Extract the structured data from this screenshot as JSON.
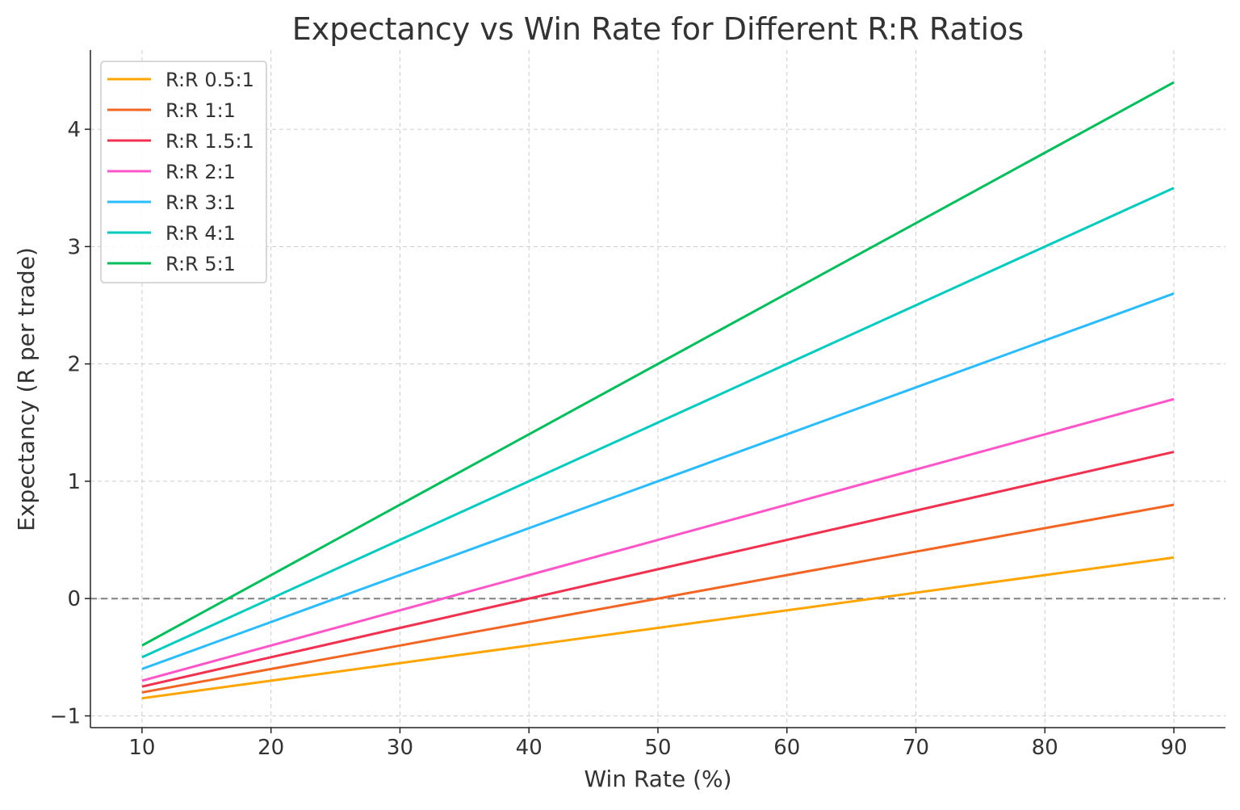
{
  "chart_data": {
    "type": "line",
    "title": "Expectancy vs Win Rate for Different R:R Ratios",
    "xlabel": "Win Rate (%)",
    "ylabel": "Expectancy (R per trade)",
    "xlim": [
      6,
      94
    ],
    "ylim": [
      -1.1,
      4.675
    ],
    "xticks": [
      10,
      20,
      30,
      40,
      50,
      60,
      70,
      80,
      90
    ],
    "yticks": [
      -1,
      0,
      1,
      2,
      3,
      4
    ],
    "ytick_labels": [
      "−1",
      "0",
      "1",
      "2",
      "3",
      "4"
    ],
    "grid": true,
    "reference_line": {
      "y": 0,
      "style": "dashed",
      "color": "#808080"
    },
    "legend_position": "top-left",
    "x": [
      10,
      20,
      30,
      40,
      50,
      60,
      70,
      80,
      90
    ],
    "series": [
      {
        "name": "R:R 0.5:1",
        "color": "#FFA500",
        "values": [
          -0.85,
          -0.7,
          -0.55,
          -0.4,
          -0.25,
          -0.1,
          0.05,
          0.2,
          0.35
        ]
      },
      {
        "name": "R:R 1:1",
        "color": "#F26522",
        "values": [
          -0.8,
          -0.6,
          -0.4,
          -0.2,
          0,
          0.2,
          0.4,
          0.6,
          0.8
        ]
      },
      {
        "name": "R:R 1.5:1",
        "color": "#F2304F",
        "values": [
          -0.75,
          -0.5,
          -0.25,
          0,
          0.25,
          0.5,
          0.75,
          1.0,
          1.25
        ]
      },
      {
        "name": "R:R 2:1",
        "color": "#FF55C8",
        "values": [
          -0.7,
          -0.4,
          -0.1,
          0.2,
          0.5,
          0.8,
          1.1,
          1.4,
          1.7
        ]
      },
      {
        "name": "R:R 3:1",
        "color": "#29BCFF",
        "values": [
          -0.6,
          -0.2,
          0.2,
          0.6,
          1.0,
          1.4,
          1.8,
          2.2,
          2.6
        ]
      },
      {
        "name": "R:R 4:1",
        "color": "#00CCC0",
        "values": [
          -0.5,
          0,
          0.5,
          1.0,
          1.5,
          2.0,
          2.5,
          3.0,
          3.5
        ]
      },
      {
        "name": "R:R 5:1",
        "color": "#00C05A",
        "values": [
          -0.4,
          0.2,
          0.8,
          1.4,
          2.0,
          2.6,
          3.2,
          3.8,
          4.4
        ]
      }
    ]
  }
}
